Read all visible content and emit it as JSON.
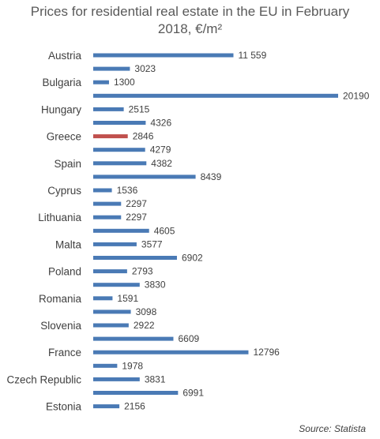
{
  "chart_data": {
    "type": "bar",
    "orientation": "horizontal",
    "title_line1": "Prices for residential real estate in the EU in February",
    "title_line2": "2018, €/m²",
    "unit": "€/m²",
    "source": "Source: Statista",
    "categories": [
      "Austria",
      "",
      "Bulgaria",
      "",
      "Hungary",
      "",
      "Greece",
      "",
      "Spain",
      "",
      "Cyprus",
      "",
      "Lithuania",
      "",
      "Malta",
      "",
      "Poland",
      "",
      "Romania",
      "",
      "Slovenia",
      "",
      "France",
      "",
      "Czech Republic",
      "",
      "Estonia"
    ],
    "values": [
      11559,
      3023,
      1300,
      20190,
      2515,
      4326,
      2846,
      4279,
      4382,
      8439,
      1536,
      2297,
      2297,
      4605,
      3577,
      6902,
      2793,
      3830,
      1591,
      3098,
      2922,
      6609,
      12796,
      1978,
      3831,
      6991,
      2156
    ],
    "value_labels": [
      "11 559",
      "3023",
      "1300",
      "20190",
      "2515",
      "4326",
      "2846",
      "4279",
      "4382",
      "8439",
      "1536",
      "2297",
      "2297",
      "4605",
      "3577",
      "6902",
      "2793",
      "3830",
      "1591",
      "3098",
      "2922",
      "6609",
      "12796",
      "1978",
      "3831",
      "6991",
      "2156"
    ],
    "highlight_category": "Greece",
    "xlim": [
      0,
      20190
    ],
    "grid": false,
    "colors": {
      "bar": "#4a7ab5",
      "highlight": "#c0504d",
      "text": "#404040",
      "title": "#595959"
    }
  }
}
